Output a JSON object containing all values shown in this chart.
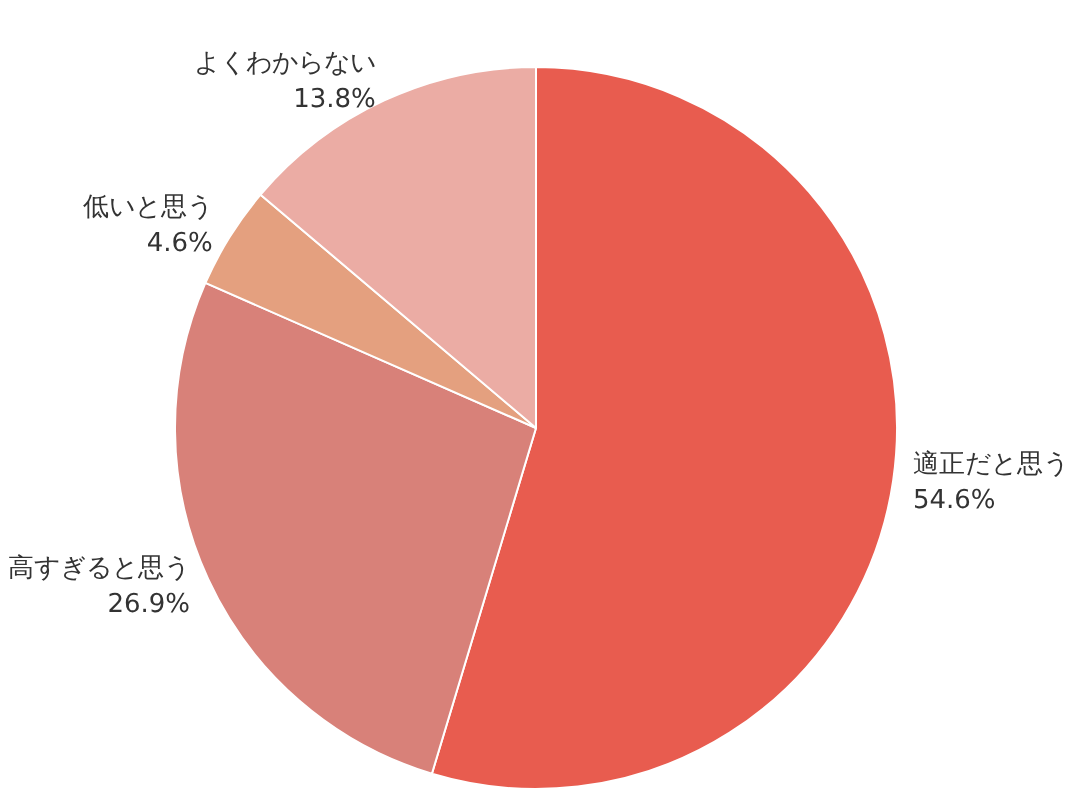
{
  "chart_data": {
    "type": "pie",
    "categories": [
      "適正だと思う",
      "高すぎると思う",
      "低いと思う",
      "よくわからない"
    ],
    "values": [
      54.6,
      26.9,
      4.6,
      13.8
    ],
    "value_labels": [
      "54.6%",
      "26.9%",
      "4.6%",
      "13.8%"
    ],
    "colors": [
      "#e85c4f",
      "#d88179",
      "#e4a07f",
      "#ebaca4"
    ],
    "legend": false
  }
}
